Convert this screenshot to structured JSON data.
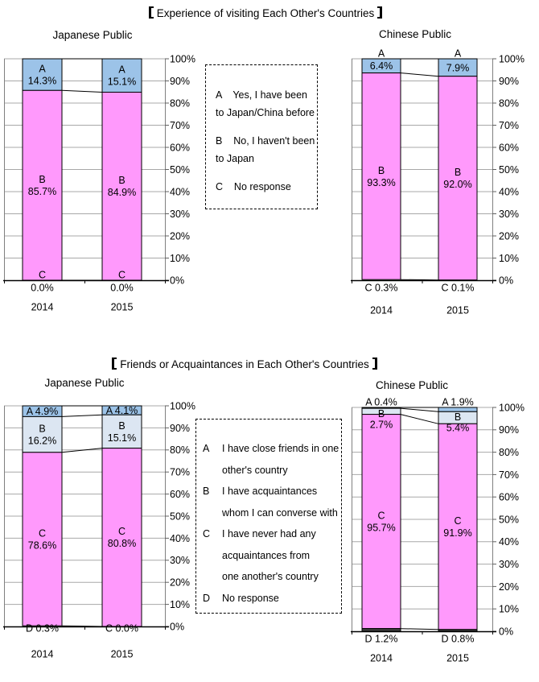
{
  "sections": [
    {
      "title": "Experience of visiting Each Other's Countries",
      "legend": {
        "items": [
          {
            "lines": [
              "A    Yes, I have been",
              "to Japan/China before"
            ]
          },
          {
            "lines": [
              "B    No, I haven't been",
              "to Japan"
            ]
          },
          {
            "lines": [
              "C    No response"
            ]
          }
        ]
      }
    },
    {
      "title": "Friends or Acquaintances in Each Other's Countries",
      "legend": {
        "items": [
          {
            "letter": "A",
            "lines": [
              "I have close friends in one",
              "other's country"
            ]
          },
          {
            "letter": "B",
            "lines": [
              "I have acquaintances",
              "whom I can converse with"
            ]
          },
          {
            "letter": "C",
            "lines": [
              "I have never had any",
              "acquaintances from",
              "one another's country"
            ]
          },
          {
            "letter": "D",
            "lines": [
              "No response"
            ]
          }
        ]
      }
    }
  ],
  "palette": {
    "blue": "#9CC3E8",
    "pink": "#FF99FC",
    "light_blue": "#DCE6F2",
    "dark": "#404040",
    "grid": "#A8A8A8",
    "axis": "#000000"
  },
  "chart_data": [
    {
      "id": "exp-jp",
      "type": "bar",
      "stacked": true,
      "title": "Japanese Public",
      "categories": [
        "2014",
        "2015"
      ],
      "ylim": [
        0,
        100
      ],
      "yticks": [
        "0%",
        "10%",
        "20%",
        "30%",
        "40%",
        "50%",
        "60%",
        "70%",
        "80%",
        "90%",
        "100%"
      ],
      "series": [
        {
          "name": "A",
          "color": "#9CC3E8",
          "values": [
            14.3,
            15.1
          ],
          "label_mode": "in2",
          "labels": [
            [
              "A",
              "14.3%"
            ],
            [
              "A",
              "15.1%"
            ]
          ]
        },
        {
          "name": "B",
          "color": "#FF99FC",
          "values": [
            85.7,
            84.9
          ],
          "label_mode": "in2",
          "labels": [
            [
              "B",
              "85.7%"
            ],
            [
              "B",
              "84.9%"
            ]
          ]
        },
        {
          "name": "C",
          "color": "#404040",
          "values": [
            0.0,
            0.0
          ],
          "label_mode": "straddle2",
          "labels": [
            [
              "C",
              "0.0%"
            ],
            [
              "C",
              "0.0%"
            ]
          ]
        }
      ]
    },
    {
      "id": "exp-cn",
      "type": "bar",
      "stacked": true,
      "title": "Chinese Public",
      "categories": [
        "2014",
        "2015"
      ],
      "ylim": [
        0,
        100
      ],
      "yticks": [
        "0%",
        "10%",
        "20%",
        "30%",
        "40%",
        "50%",
        "60%",
        "70%",
        "80%",
        "90%",
        "100%"
      ],
      "series": [
        {
          "name": "A",
          "color": "#9CC3E8",
          "values": [
            6.4,
            7.9
          ],
          "label_mode": "letter-above",
          "labels": [
            [
              "A",
              "6.4%"
            ],
            [
              "A",
              "7.9%"
            ]
          ]
        },
        {
          "name": "B",
          "color": "#FF99FC",
          "values": [
            93.3,
            92.0
          ],
          "label_mode": "in2",
          "labels": [
            [
              "B",
              "93.3%"
            ],
            [
              "B",
              "92.0%"
            ]
          ]
        },
        {
          "name": "C",
          "color": "#404040",
          "values": [
            0.3,
            0.1
          ],
          "label_mode": "below1",
          "labels": [
            [
              "C",
              "0.3%"
            ],
            [
              "C",
              "0.1%"
            ]
          ]
        }
      ]
    },
    {
      "id": "fr-jp",
      "type": "bar",
      "stacked": true,
      "title": "Japanese Public",
      "categories": [
        "2014",
        "2015"
      ],
      "ylim": [
        0,
        100
      ],
      "yticks": [
        "0%",
        "10%",
        "20%",
        "30%",
        "40%",
        "50%",
        "60%",
        "70%",
        "80%",
        "90%",
        "100%"
      ],
      "series": [
        {
          "name": "A",
          "color": "#9CC3E8",
          "values": [
            4.9,
            4.1
          ],
          "label_mode": "in1",
          "labels": [
            [
              "A",
              "4.9%"
            ],
            [
              "A",
              "4.1%"
            ]
          ]
        },
        {
          "name": "B",
          "color": "#DCE6F2",
          "values": [
            16.2,
            15.1
          ],
          "label_mode": "in2",
          "labels": [
            [
              "B",
              "16.2%"
            ],
            [
              "B",
              "15.1%"
            ]
          ]
        },
        {
          "name": "C",
          "color": "#FF99FC",
          "values": [
            78.6,
            80.8
          ],
          "label_mode": "in2",
          "labels": [
            [
              "C",
              "78.6%"
            ],
            [
              "C",
              "80.8%"
            ]
          ]
        },
        {
          "name": "D",
          "color": "#404040",
          "values": [
            0.3,
            0.0
          ],
          "label_mode": "axis1",
          "labels": [
            [
              "D",
              "0.3%"
            ],
            [
              "C",
              "0.0%"
            ]
          ]
        }
      ]
    },
    {
      "id": "fr-cn",
      "type": "bar",
      "stacked": true,
      "title": "Chinese Public",
      "categories": [
        "2014",
        "2015"
      ],
      "ylim": [
        0,
        100
      ],
      "yticks": [
        "0%",
        "10%",
        "20%",
        "30%",
        "40%",
        "50%",
        "60%",
        "70%",
        "80%",
        "90%",
        "100%"
      ],
      "series": [
        {
          "name": "A",
          "color": "#9CC3E8",
          "values": [
            0.4,
            1.9
          ],
          "label_mode": "above1",
          "labels": [
            [
              "A",
              "0.4%"
            ],
            [
              "A",
              "1.9%"
            ]
          ]
        },
        {
          "name": "B",
          "color": "#DCE6F2",
          "values": [
            2.7,
            5.4
          ],
          "label_mode": "in2top",
          "labels": [
            [
              "B",
              "2.7%"
            ],
            [
              "B",
              "5.4%"
            ]
          ]
        },
        {
          "name": "C",
          "color": "#FF99FC",
          "values": [
            95.7,
            91.9
          ],
          "label_mode": "in2",
          "labels": [
            [
              "C",
              "95.7%"
            ],
            [
              "C",
              "91.9%"
            ]
          ]
        },
        {
          "name": "D",
          "color": "#404040",
          "values": [
            1.2,
            0.8
          ],
          "label_mode": "below1",
          "labels": [
            [
              "D",
              "1.2%"
            ],
            [
              "D",
              "0.8%"
            ]
          ]
        }
      ]
    }
  ]
}
